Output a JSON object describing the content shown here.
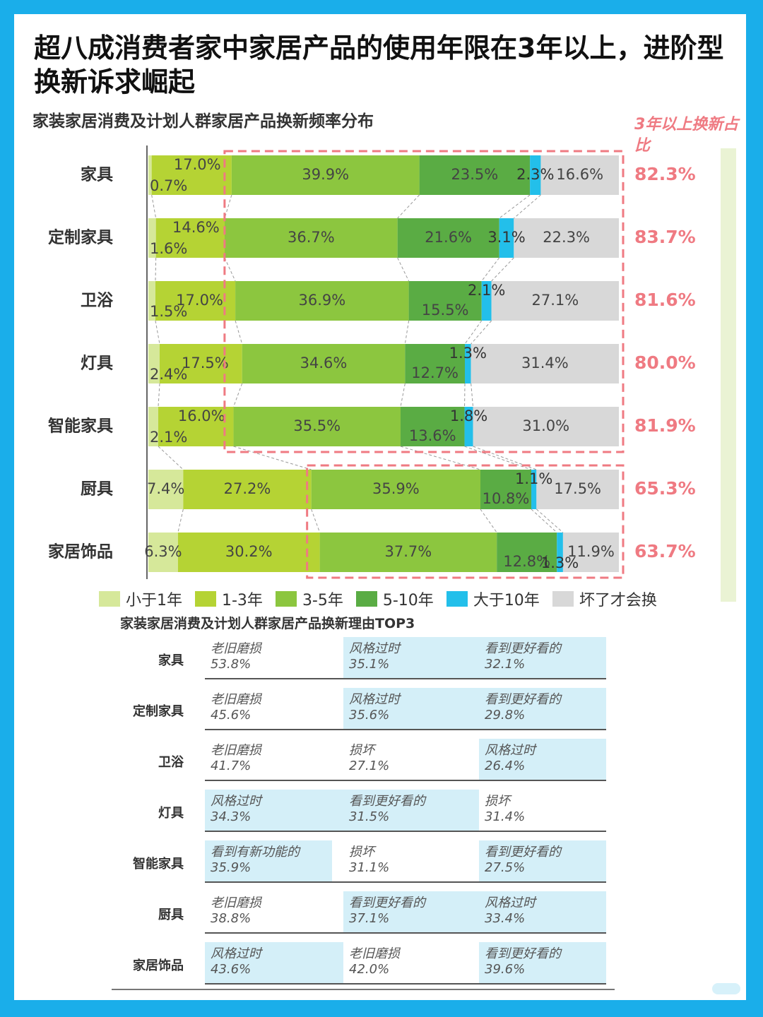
{
  "title": "超八成消费者家中家居产品的使用年限在3年以上，进阶型换新诉求崛起",
  "chart_subtitle": "家装家居消费及计划人群家居产品换新频率分布",
  "right_title": "3年以上换新占比",
  "colors": {
    "lt1": "#d6e89a",
    "y1to3": "#b5d334",
    "y3to5": "#8cc63f",
    "y5to10": "#5aac44",
    "gt10": "#23bfea",
    "broken": "#d8d8d8",
    "highlight": "#ef7a82"
  },
  "chart_data": {
    "type": "bar",
    "stacked": true,
    "orientation": "horizontal",
    "categories": [
      "家具",
      "定制家具",
      "卫浴",
      "灯具",
      "智能家具",
      "厨具",
      "家居饰品"
    ],
    "series": [
      {
        "name": "小于1年",
        "values": [
          0.7,
          1.6,
          1.5,
          2.4,
          2.1,
          7.4,
          6.3
        ],
        "labels": [
          "0.7%",
          "1.6%",
          "1.5%",
          "2.4%",
          "2.1%",
          "7.4%",
          "6.3%"
        ]
      },
      {
        "name": "1-3年",
        "values": [
          17.0,
          14.6,
          17.0,
          17.5,
          16.0,
          27.2,
          30.2
        ],
        "labels": [
          "17.0%",
          "14.6%",
          "17.0%",
          "17.5%",
          "16.0%",
          "27.2%",
          "30.2%"
        ]
      },
      {
        "name": "3-5年",
        "values": [
          39.9,
          36.7,
          36.9,
          34.6,
          35.5,
          35.9,
          37.7
        ],
        "labels": [
          "39.9%",
          "36.7%",
          "36.9%",
          "34.6%",
          "35.5%",
          "35.9%",
          "37.7%"
        ]
      },
      {
        "name": "5-10年",
        "values": [
          23.5,
          21.6,
          15.5,
          12.7,
          13.6,
          10.8,
          12.8
        ],
        "labels": [
          "23.5%",
          "21.6%",
          "15.5%",
          "12.7%",
          "13.6%",
          "10.8%",
          "12.8%"
        ]
      },
      {
        "name": "大于10年",
        "values": [
          2.3,
          3.1,
          2.1,
          1.3,
          1.8,
          1.1,
          1.3
        ],
        "labels": [
          "2.3%",
          "3.1%",
          "2.1%",
          "1.3%",
          "1.8%",
          "1.1%",
          "1.3%"
        ]
      },
      {
        "name": "坏了才会换",
        "values": [
          16.6,
          22.3,
          27.1,
          31.4,
          31.0,
          17.5,
          11.9
        ],
        "labels": [
          "16.6%",
          "22.3%",
          "27.1%",
          "31.4%",
          "31.0%",
          "17.5%",
          "11.9%"
        ]
      }
    ],
    "totals_3plus": [
      "82.3%",
      "83.7%",
      "81.6%",
      "80.0%",
      "81.9%",
      "65.3%",
      "63.7%"
    ],
    "xlim": [
      0,
      100
    ],
    "legend_position": "bottom"
  },
  "reasons": {
    "title": "家装家居消费及计划人群家居产品换新理由TOP3",
    "rows": [
      {
        "label": "家具",
        "cells": [
          {
            "reason": "老旧磨损",
            "pct": "53.8%"
          },
          {
            "reason": "风格过时",
            "pct": "35.1%"
          },
          {
            "reason": "看到更好看的",
            "pct": "32.1%"
          }
        ]
      },
      {
        "label": "定制家具",
        "cells": [
          {
            "reason": "老旧磨损",
            "pct": "45.6%"
          },
          {
            "reason": "风格过时",
            "pct": "35.6%"
          },
          {
            "reason": "看到更好看的",
            "pct": "29.8%"
          }
        ]
      },
      {
        "label": "卫浴",
        "cells": [
          {
            "reason": "老旧磨损",
            "pct": "41.7%"
          },
          {
            "reason": "损坏",
            "pct": "27.1%"
          },
          {
            "reason": "风格过时",
            "pct": "26.4%"
          }
        ]
      },
      {
        "label": "灯具",
        "cells": [
          {
            "reason": "风格过时",
            "pct": "34.3%"
          },
          {
            "reason": "看到更好看的",
            "pct": "31.5%"
          },
          {
            "reason": "损坏",
            "pct": "31.4%"
          }
        ]
      },
      {
        "label": "智能家具",
        "cells": [
          {
            "reason": "看到有新功能的",
            "pct": "35.9%"
          },
          {
            "reason": "损坏",
            "pct": "31.1%"
          },
          {
            "reason": "看到更好看的",
            "pct": "27.5%"
          }
        ]
      },
      {
        "label": "厨具",
        "cells": [
          {
            "reason": "老旧磨损",
            "pct": "38.8%"
          },
          {
            "reason": "看到更好看的",
            "pct": "37.1%"
          },
          {
            "reason": "风格过时",
            "pct": "33.4%"
          }
        ]
      },
      {
        "label": "家居饰品",
        "cells": [
          {
            "reason": "风格过时",
            "pct": "43.6%"
          },
          {
            "reason": "老旧磨损",
            "pct": "42.0%"
          },
          {
            "reason": "看到更好看的",
            "pct": "39.6%"
          }
        ]
      }
    ]
  }
}
